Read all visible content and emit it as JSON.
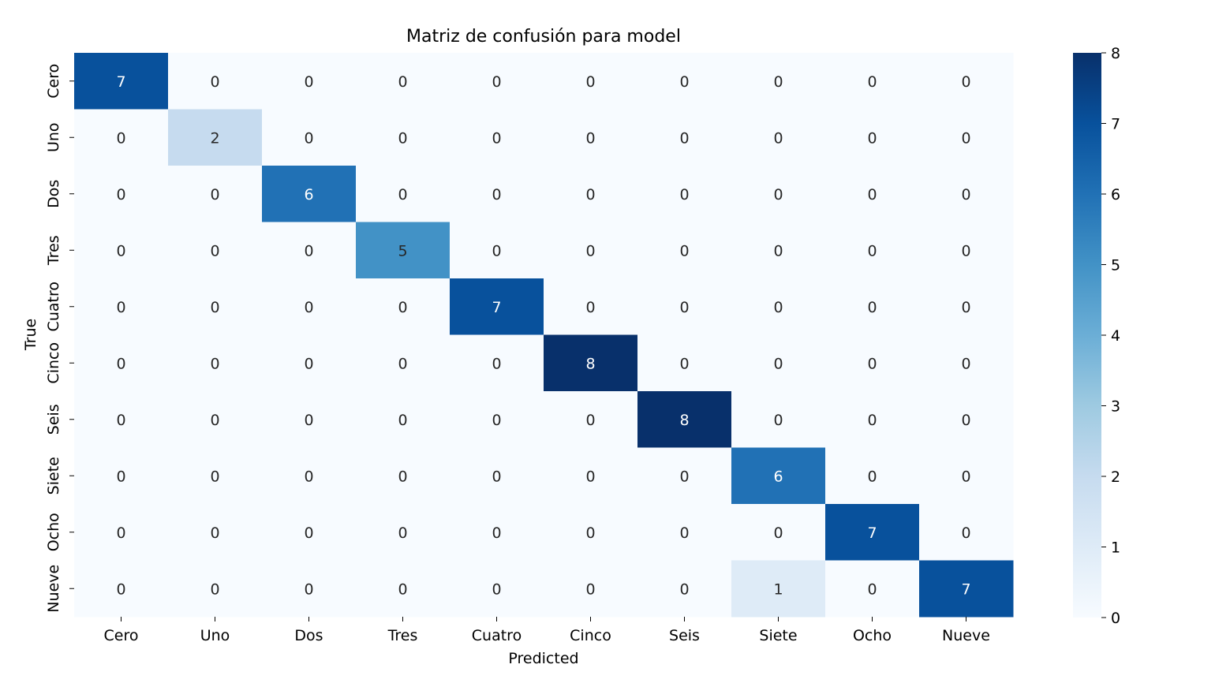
{
  "chart_data": {
    "type": "heatmap",
    "title": "Matriz de confusión para model",
    "xlabel": "Predicted",
    "ylabel": "True",
    "x_categories": [
      "Cero",
      "Uno",
      "Dos",
      "Tres",
      "Cuatro",
      "Cinco",
      "Seis",
      "Siete",
      "Ocho",
      "Nueve"
    ],
    "y_categories": [
      "Cero",
      "Uno",
      "Dos",
      "Tres",
      "Cuatro",
      "Cinco",
      "Seis",
      "Siete",
      "Ocho",
      "Nueve"
    ],
    "values": [
      [
        7,
        0,
        0,
        0,
        0,
        0,
        0,
        0,
        0,
        0
      ],
      [
        0,
        2,
        0,
        0,
        0,
        0,
        0,
        0,
        0,
        0
      ],
      [
        0,
        0,
        6,
        0,
        0,
        0,
        0,
        0,
        0,
        0
      ],
      [
        0,
        0,
        0,
        5,
        0,
        0,
        0,
        0,
        0,
        0
      ],
      [
        0,
        0,
        0,
        0,
        7,
        0,
        0,
        0,
        0,
        0
      ],
      [
        0,
        0,
        0,
        0,
        0,
        8,
        0,
        0,
        0,
        0
      ],
      [
        0,
        0,
        0,
        0,
        0,
        0,
        8,
        0,
        0,
        0
      ],
      [
        0,
        0,
        0,
        0,
        0,
        0,
        0,
        6,
        0,
        0
      ],
      [
        0,
        0,
        0,
        0,
        0,
        0,
        0,
        0,
        7,
        0
      ],
      [
        0,
        0,
        0,
        0,
        0,
        0,
        0,
        1,
        0,
        7
      ]
    ],
    "colorbar": {
      "min": 0,
      "max": 8,
      "ticks": [
        0,
        1,
        2,
        3,
        4,
        5,
        6,
        7,
        8
      ]
    },
    "colormap": "Blues",
    "colormap_stops": [
      "#f7fbff",
      "#deebf7",
      "#c6dbef",
      "#9ecae1",
      "#6baed6",
      "#4292c6",
      "#2171b5",
      "#08519c",
      "#08306b"
    ]
  }
}
